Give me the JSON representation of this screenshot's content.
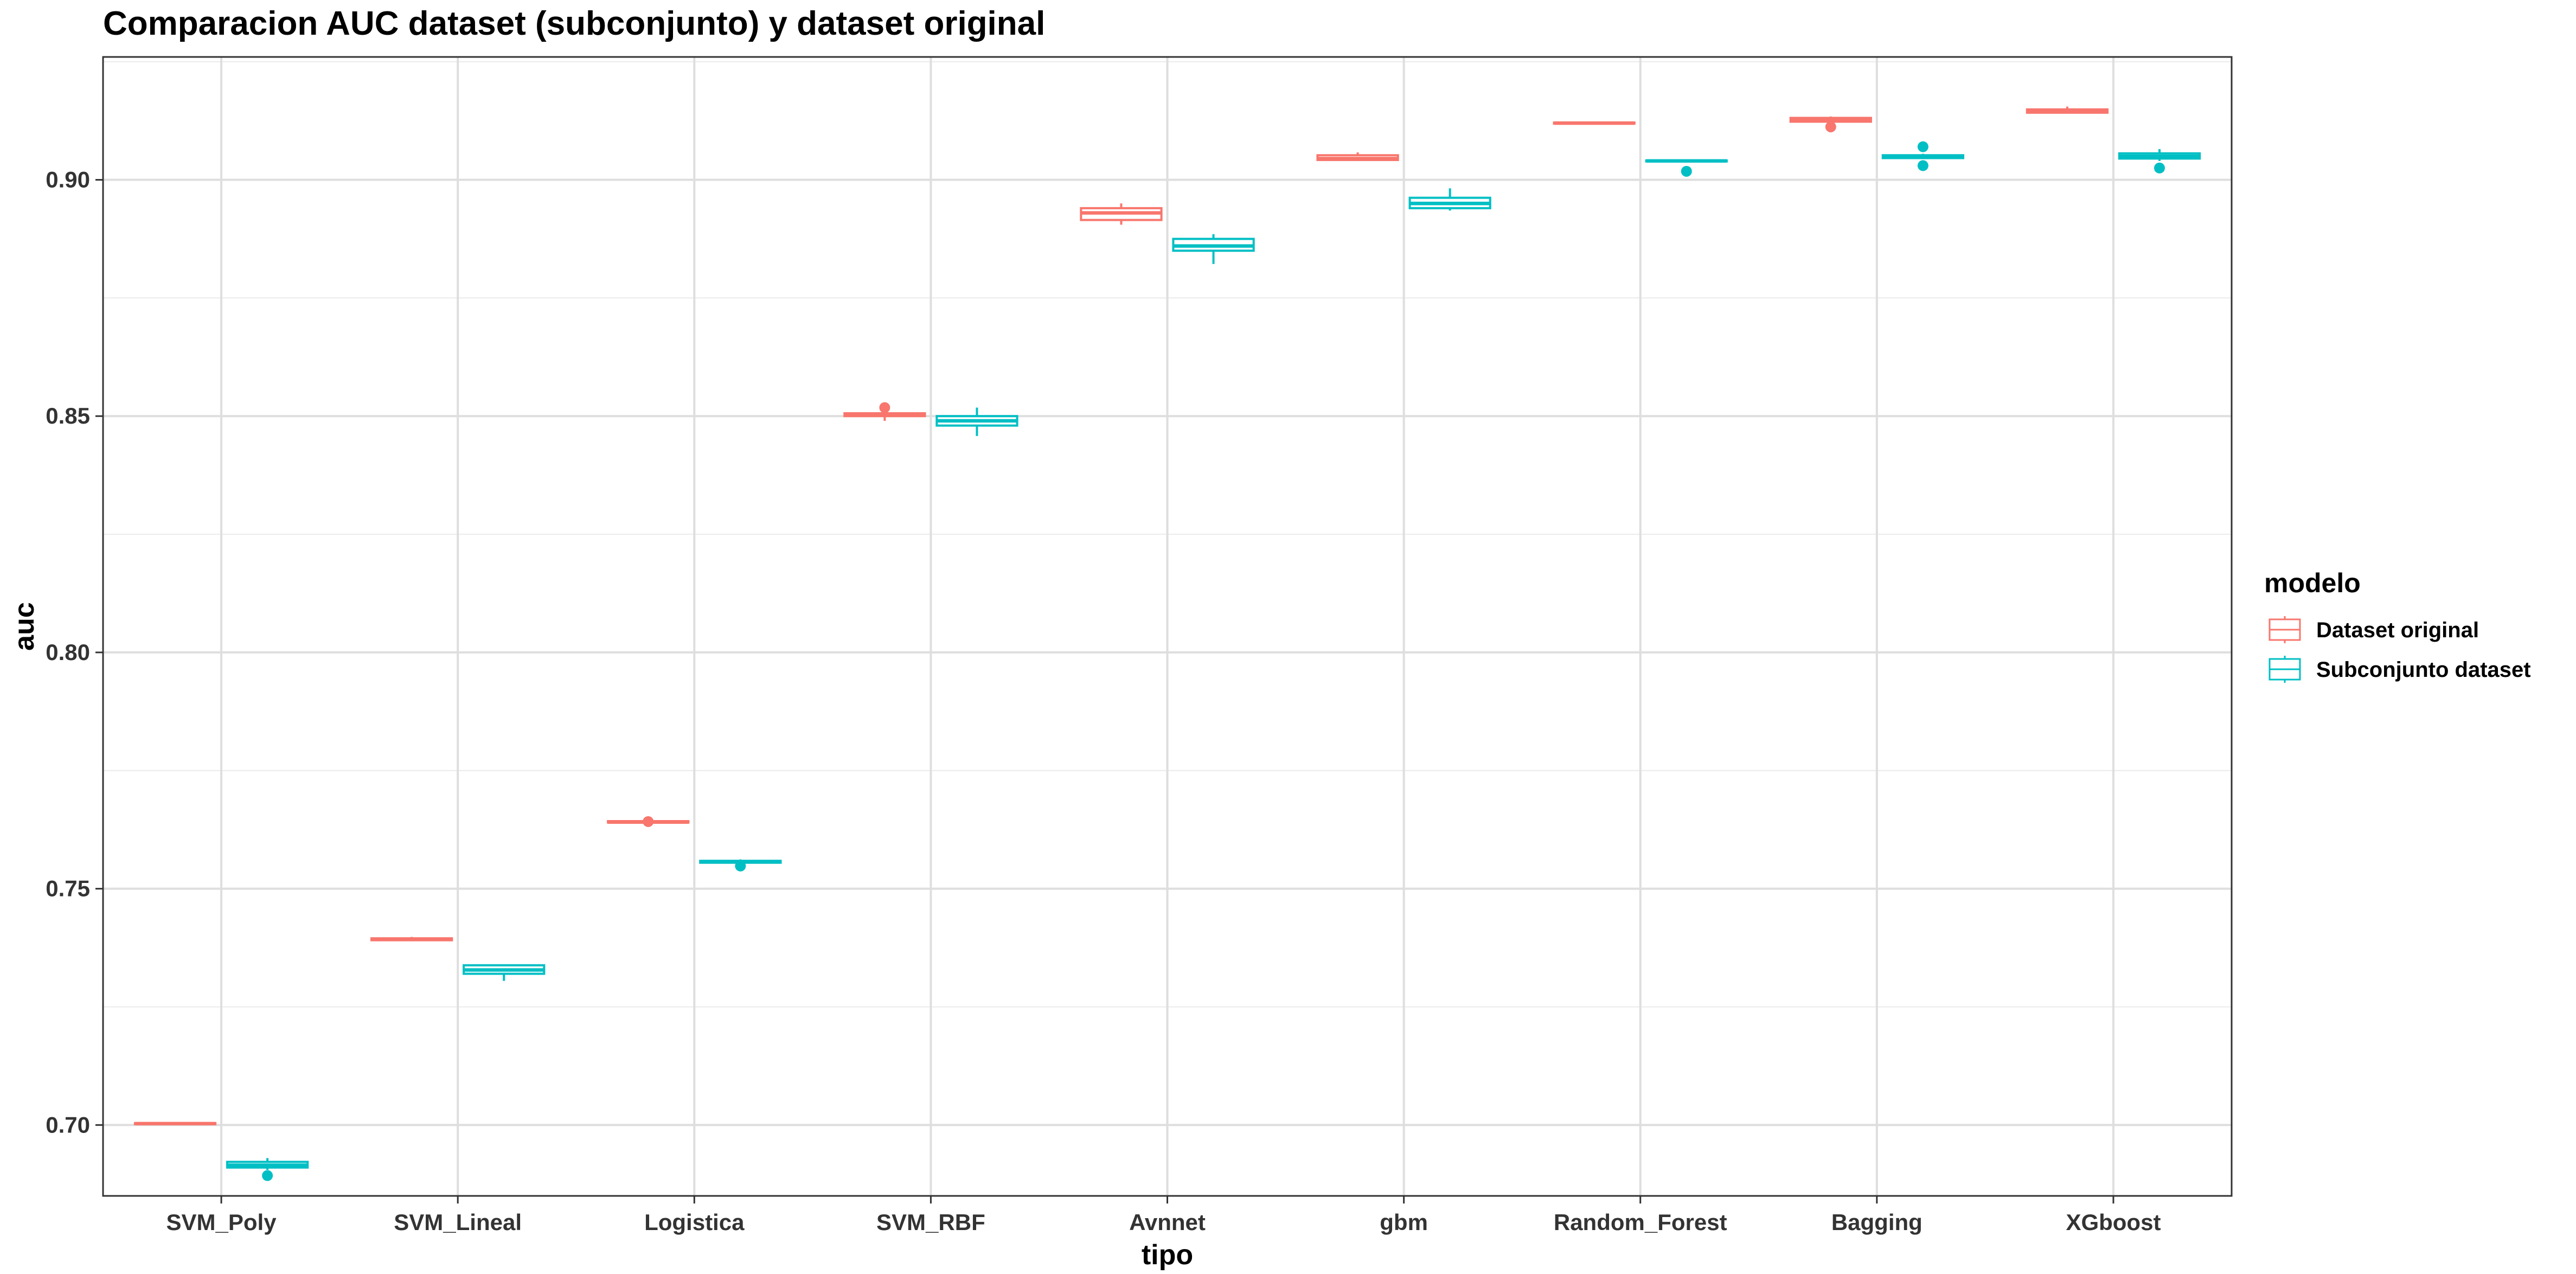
{
  "chart_data": {
    "type": "boxplot",
    "title": "Comparacion AUC dataset (subconjunto) y dataset original",
    "xlabel": "tipo",
    "ylabel": "auc",
    "ylim": [
      0.685,
      0.926
    ],
    "yticks": [
      0.7,
      0.75,
      0.8,
      0.85,
      0.9
    ],
    "ytick_labels": [
      "0.70",
      "0.75",
      "0.80",
      "0.85",
      "0.90"
    ],
    "grid": true,
    "legend": {
      "title": "modelo",
      "position": "right"
    },
    "categories": [
      "SVM_Poly",
      "SVM_Lineal",
      "Logistica",
      "SVM_RBF",
      "Avnnet",
      "gbm",
      "Random_Forest",
      "Bagging",
      "XGboost"
    ],
    "series": [
      {
        "name": "Dataset original",
        "color": "#F8766D",
        "boxes": [
          {
            "min": 0.7001,
            "q1": 0.7002,
            "median": 0.7003,
            "q3": 0.7004,
            "max": 0.7005,
            "outliers": []
          },
          {
            "min": 0.739,
            "q1": 0.7391,
            "median": 0.7393,
            "q3": 0.7395,
            "max": 0.7398,
            "outliers": []
          },
          {
            "min": 0.7639,
            "q1": 0.764,
            "median": 0.7641,
            "q3": 0.7643,
            "max": 0.7645,
            "outliers": [
              0.7642
            ]
          },
          {
            "min": 0.849,
            "q1": 0.85,
            "median": 0.8503,
            "q3": 0.8506,
            "max": 0.851,
            "outliers": [
              0.8518
            ]
          },
          {
            "min": 0.8905,
            "q1": 0.8915,
            "median": 0.893,
            "q3": 0.894,
            "max": 0.895,
            "outliers": []
          },
          {
            "min": 0.904,
            "q1": 0.9042,
            "median": 0.9045,
            "q3": 0.9052,
            "max": 0.9058,
            "outliers": []
          },
          {
            "min": 0.9118,
            "q1": 0.9119,
            "median": 0.912,
            "q3": 0.9121,
            "max": 0.9122,
            "outliers": []
          },
          {
            "min": 0.9122,
            "q1": 0.9123,
            "median": 0.9126,
            "q3": 0.9131,
            "max": 0.9134,
            "outliers": [
              0.9112
            ]
          },
          {
            "min": 0.914,
            "q1": 0.9142,
            "median": 0.9145,
            "q3": 0.9149,
            "max": 0.9155,
            "outliers": []
          }
        ]
      },
      {
        "name": "Subconjunto dataset",
        "color": "#00BFC4",
        "boxes": [
          {
            "min": 0.6905,
            "q1": 0.691,
            "median": 0.6915,
            "q3": 0.6922,
            "max": 0.693,
            "outliers": [
              0.6893
            ]
          },
          {
            "min": 0.7305,
            "q1": 0.732,
            "median": 0.7328,
            "q3": 0.7338,
            "max": 0.734,
            "outliers": []
          },
          {
            "min": 0.7553,
            "q1": 0.7555,
            "median": 0.7557,
            "q3": 0.7559,
            "max": 0.7562,
            "outliers": [
              0.7548
            ]
          },
          {
            "min": 0.8458,
            "q1": 0.848,
            "median": 0.849,
            "q3": 0.85,
            "max": 0.8518,
            "outliers": []
          },
          {
            "min": 0.8822,
            "q1": 0.885,
            "median": 0.886,
            "q3": 0.8875,
            "max": 0.8885,
            "outliers": []
          },
          {
            "min": 0.8935,
            "q1": 0.894,
            "median": 0.895,
            "q3": 0.8962,
            "max": 0.8982,
            "outliers": []
          },
          {
            "min": 0.9037,
            "q1": 0.9039,
            "median": 0.904,
            "q3": 0.9041,
            "max": 0.9042,
            "outliers": [
              0.9018
            ]
          },
          {
            "min": 0.9045,
            "q1": 0.9046,
            "median": 0.9049,
            "q3": 0.9052,
            "max": 0.9055,
            "outliers": [
              0.907,
              0.903
            ]
          },
          {
            "min": 0.904,
            "q1": 0.9045,
            "median": 0.905,
            "q3": 0.9056,
            "max": 0.9065,
            "outliers": [
              0.9025
            ]
          }
        ]
      }
    ]
  }
}
